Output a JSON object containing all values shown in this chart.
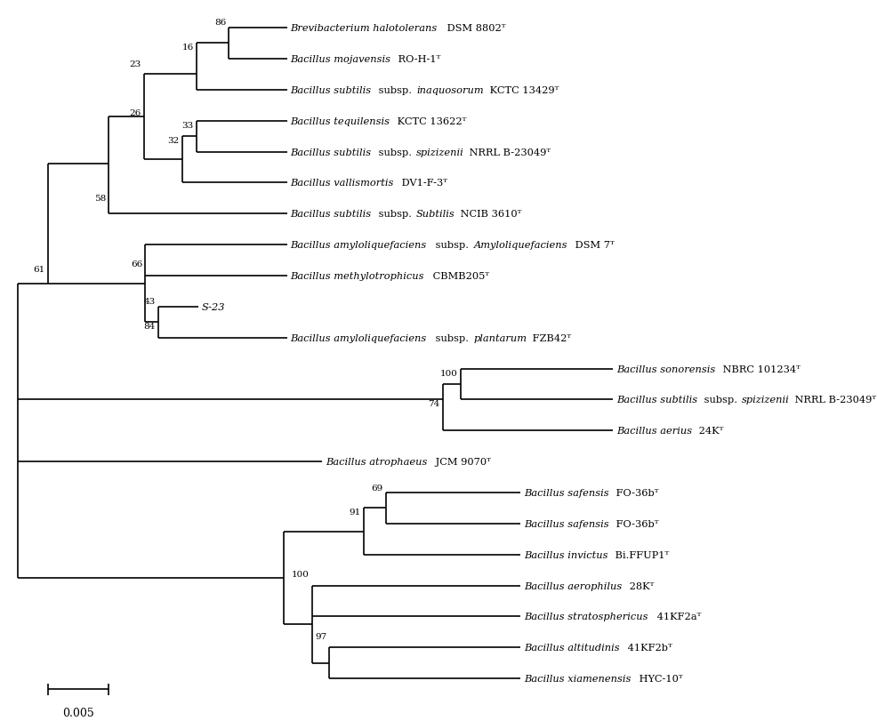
{
  "background": "#ffffff",
  "scale_bar_value": "0.005",
  "taxa": [
    {
      "label": "Brevibacterium halotolerans",
      "strain": " DSM 8802ᵀ",
      "y": 1
    },
    {
      "label": "Bacillus mojavensis",
      "strain": " RO-H-1ᵀ",
      "y": 2
    },
    {
      "label": "Bacillus subtilis",
      "strain": " subsp. ",
      "label2": "inaquosorum",
      "strain2": " KCTC 13429ᵀ",
      "y": 3
    },
    {
      "label": "Bacillus tequilensis",
      "strain": " KCTC 13622ᵀ",
      "y": 4
    },
    {
      "label": "Bacillus subtilis",
      "strain": " subsp. ",
      "label2": "spizizenii",
      "strain2": " NRRL B-23049ᵀ",
      "y": 5
    },
    {
      "label": "Bacillus vallismortis",
      "strain": " DV1-F-3ᵀ",
      "y": 6
    },
    {
      "label": "Bacillus subtilis",
      "strain": " subsp. ",
      "label2": "Subtilis",
      "strain2": " NCIB 3610ᵀ",
      "y": 7
    },
    {
      "label": "Bacillus amyloliquefaciens",
      "strain": " subsp. ",
      "label2": "Amyloliquefaciens",
      "strain2": " DSM 7ᵀ",
      "y": 8
    },
    {
      "label": "Bacillus methylotrophicus",
      "strain": " CBMB205ᵀ",
      "y": 9
    },
    {
      "label": "S-23",
      "strain": "",
      "y": 10
    },
    {
      "label": "Bacillus amyloliquefaciens",
      "strain": " subsp. ",
      "label2": "plantarum",
      "strain2": " FZB42ᵀ",
      "y": 11
    },
    {
      "label": "Bacillus sonorensis",
      "strain": " NBRC 101234ᵀ",
      "y": 12
    },
    {
      "label": "Bacillus subtilis",
      "strain": " subsp. ",
      "label2": "spizizenii",
      "strain2": " NRRL B-23049ᵀ",
      "y": 13
    },
    {
      "label": "Bacillus aerius",
      "strain": " 24Kᵀ",
      "y": 14
    },
    {
      "label": "Bacillus atrophaeus",
      "strain": " JCM 9070ᵀ",
      "y": 15
    },
    {
      "label": "Bacillus safensis",
      "strain": " FO-36bᵀ",
      "y": 16
    },
    {
      "label": "Bacillus safensis",
      "strain": " FO-36bᵀ",
      "y": 17
    },
    {
      "label": "Bacillus invictus",
      "strain": " Bi.FFUP1ᵀ",
      "y": 18
    },
    {
      "label": "Bacillus aerophilus",
      "strain": " 28Kᵀ",
      "y": 19
    },
    {
      "label": "Bacillus stratosphericus",
      "strain": " 41KF2aᵀ",
      "y": 20
    },
    {
      "label": "Bacillus altitudinis",
      "strain": " 41KF2bᵀ",
      "y": 21
    },
    {
      "label": "Bacillus xiamenensis",
      "strain": " HYC-10ᵀ",
      "y": 22
    }
  ]
}
